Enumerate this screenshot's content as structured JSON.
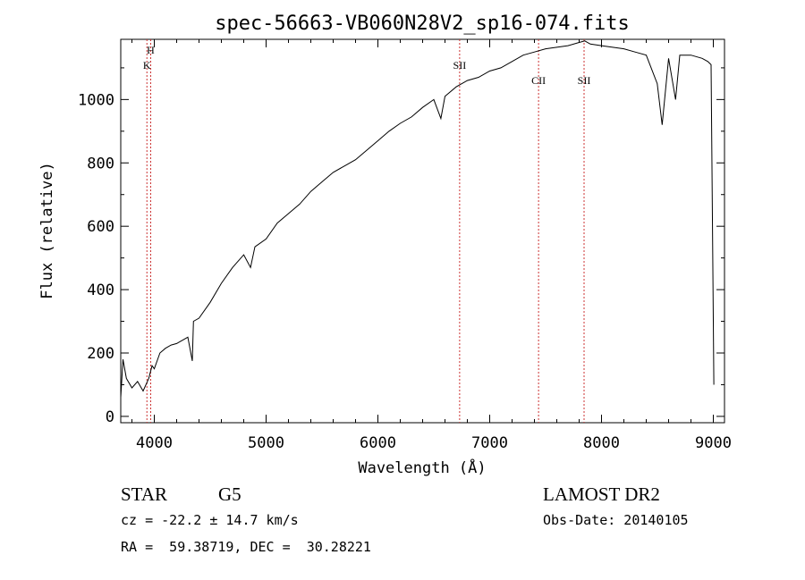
{
  "chart_data": {
    "type": "line",
    "title": "spec-56663-VB060N28V2_sp16-074.fits",
    "xlabel": "Wavelength (Å)",
    "ylabel": "Flux (relative)",
    "xlim": [
      3700,
      9100
    ],
    "ylim": [
      -20,
      1190
    ],
    "xticks": [
      4000,
      5000,
      6000,
      7000,
      8000,
      9000
    ],
    "yticks": [
      0,
      200,
      400,
      600,
      800,
      1000
    ],
    "grid": false,
    "line_color": "#000000",
    "marker_color": "#cc3333",
    "spectrum": {
      "x": [
        3700,
        3720,
        3750,
        3800,
        3850,
        3900,
        3950,
        3980,
        4000,
        4050,
        4100,
        4150,
        4200,
        4250,
        4300,
        4340,
        4350,
        4400,
        4500,
        4600,
        4700,
        4800,
        4861,
        4900,
        5000,
        5100,
        5200,
        5300,
        5400,
        5500,
        5600,
        5700,
        5800,
        5900,
        6000,
        6100,
        6200,
        6300,
        6400,
        6500,
        6563,
        6600,
        6700,
        6800,
        6900,
        7000,
        7100,
        7200,
        7300,
        7400,
        7500,
        7600,
        7700,
        7800,
        7850,
        7900,
        8000,
        8100,
        8200,
        8300,
        8400,
        8498,
        8542,
        8600,
        8662,
        8700,
        8800,
        8900,
        8950,
        8980,
        9000,
        9005
      ],
      "y": [
        60,
        180,
        120,
        90,
        110,
        80,
        120,
        160,
        150,
        200,
        215,
        225,
        230,
        240,
        250,
        175,
        300,
        310,
        360,
        420,
        470,
        510,
        470,
        535,
        560,
        610,
        640,
        670,
        710,
        740,
        770,
        790,
        810,
        840,
        870,
        900,
        925,
        945,
        975,
        1000,
        940,
        1010,
        1040,
        1060,
        1070,
        1090,
        1100,
        1120,
        1140,
        1150,
        1160,
        1165,
        1170,
        1180,
        1185,
        1175,
        1170,
        1165,
        1160,
        1150,
        1140,
        1050,
        920,
        1130,
        1000,
        1140,
        1140,
        1130,
        1120,
        1110,
        300,
        100
      ]
    },
    "lines": [
      {
        "label": "H",
        "x": 3968
      },
      {
        "label": "K",
        "x": 3934
      },
      {
        "label": "SII",
        "x": 6731
      },
      {
        "label": "CII",
        "x": 7437
      },
      {
        "label": "SII",
        "x": 7844
      }
    ]
  },
  "info": {
    "object_class": "STAR",
    "spectral_type": "G5",
    "survey": "LAMOST DR2",
    "redshift": "cz = -22.2 ± 14.7 km/s",
    "obs_date": "Obs-Date: 20140105",
    "coordinates": "RA =  59.38719, DEC =  30.28221"
  }
}
